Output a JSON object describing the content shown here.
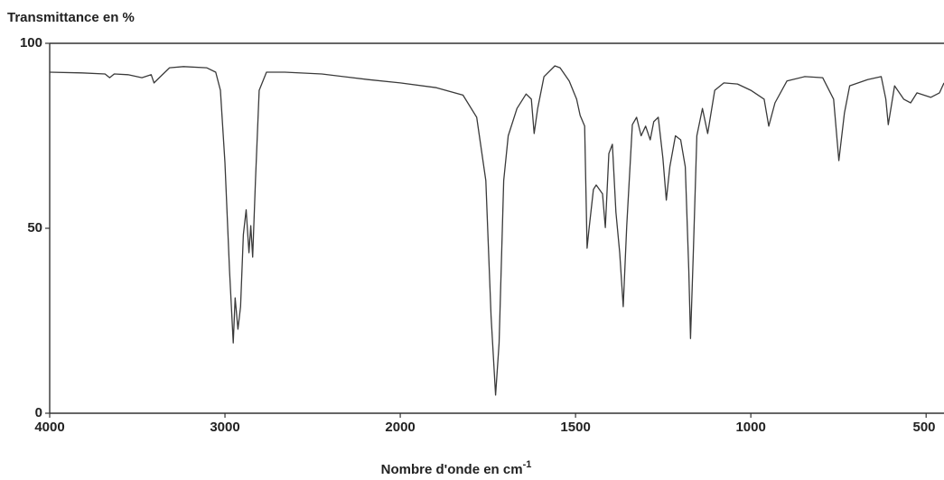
{
  "chart_data": {
    "type": "line",
    "title": "Transmittance en %",
    "x_label": "Nombre d'onde en cm",
    "x_label_superscript": "-1",
    "x_reversed": true,
    "x_scale_break": 2000,
    "x_scale_ratio_below_break": 2,
    "xlim": [
      4000,
      449
    ],
    "xticks": [
      4000,
      3000,
      2000,
      1500,
      1000,
      500
    ],
    "ylim": [
      0,
      100
    ],
    "yticks": [
      0,
      50,
      100
    ],
    "grid": false,
    "x": [
      4000,
      3816,
      3684,
      3658,
      3632,
      3553,
      3474,
      3421,
      3405,
      3368,
      3316,
      3237,
      3105,
      3053,
      3026,
      3000,
      2974,
      2953,
      2942,
      2926,
      2911,
      2895,
      2879,
      2863,
      2853,
      2842,
      2826,
      2805,
      2763,
      2658,
      2447,
      2184,
      2000,
      1897,
      1821,
      1782,
      1756,
      1741,
      1728,
      1718,
      1705,
      1692,
      1667,
      1641,
      1626,
      1618,
      1608,
      1590,
      1559,
      1544,
      1518,
      1497,
      1487,
      1474,
      1467,
      1462,
      1449,
      1441,
      1423,
      1415,
      1405,
      1395,
      1385,
      1374,
      1364,
      1354,
      1338,
      1326,
      1313,
      1300,
      1287,
      1277,
      1264,
      1251,
      1241,
      1231,
      1215,
      1200,
      1187,
      1177,
      1172,
      1164,
      1154,
      1138,
      1123,
      1103,
      1077,
      1038,
      1000,
      962,
      949,
      931,
      897,
      846,
      795,
      764,
      749,
      733,
      718,
      667,
      628,
      615,
      608,
      590,
      564,
      544,
      526,
      487,
      462,
      449
    ],
    "series": [
      {
        "name": "Transmittance",
        "color": "#3a3a3a",
        "values": [
          92.2,
          92,
          91.7,
          90.7,
          91.7,
          91.5,
          90.7,
          91.5,
          89.3,
          91,
          93.4,
          93.7,
          93.4,
          92.2,
          87.3,
          67.8,
          38.5,
          19,
          31.2,
          22.7,
          28.8,
          48.3,
          55,
          43.4,
          50.7,
          42.2,
          62.9,
          87.3,
          92.2,
          92.2,
          91.7,
          90.2,
          89.3,
          88,
          86,
          80,
          62.9,
          26.3,
          4.9,
          19,
          62.9,
          75,
          82.4,
          86.3,
          84.9,
          75.6,
          82.4,
          91,
          93.9,
          93.4,
          89.8,
          84.9,
          80.5,
          77.6,
          44.6,
          49.5,
          60.5,
          61.7,
          59.3,
          50.2,
          70.2,
          72.7,
          54.4,
          43.4,
          28.8,
          50.7,
          78,
          80,
          75,
          77.6,
          73.9,
          78.8,
          80,
          69,
          57.6,
          66.6,
          75,
          73.9,
          66.6,
          38.5,
          20.2,
          43.4,
          75,
          82.4,
          75.6,
          87.3,
          89.3,
          89,
          87.3,
          84.9,
          77.6,
          83.9,
          89.8,
          91,
          90.7,
          84.9,
          68.3,
          81.2,
          88.5,
          90.2,
          91,
          84.9,
          78,
          88.5,
          84.9,
          83.9,
          86.6,
          85.4,
          86.6,
          89.3
        ]
      }
    ]
  }
}
